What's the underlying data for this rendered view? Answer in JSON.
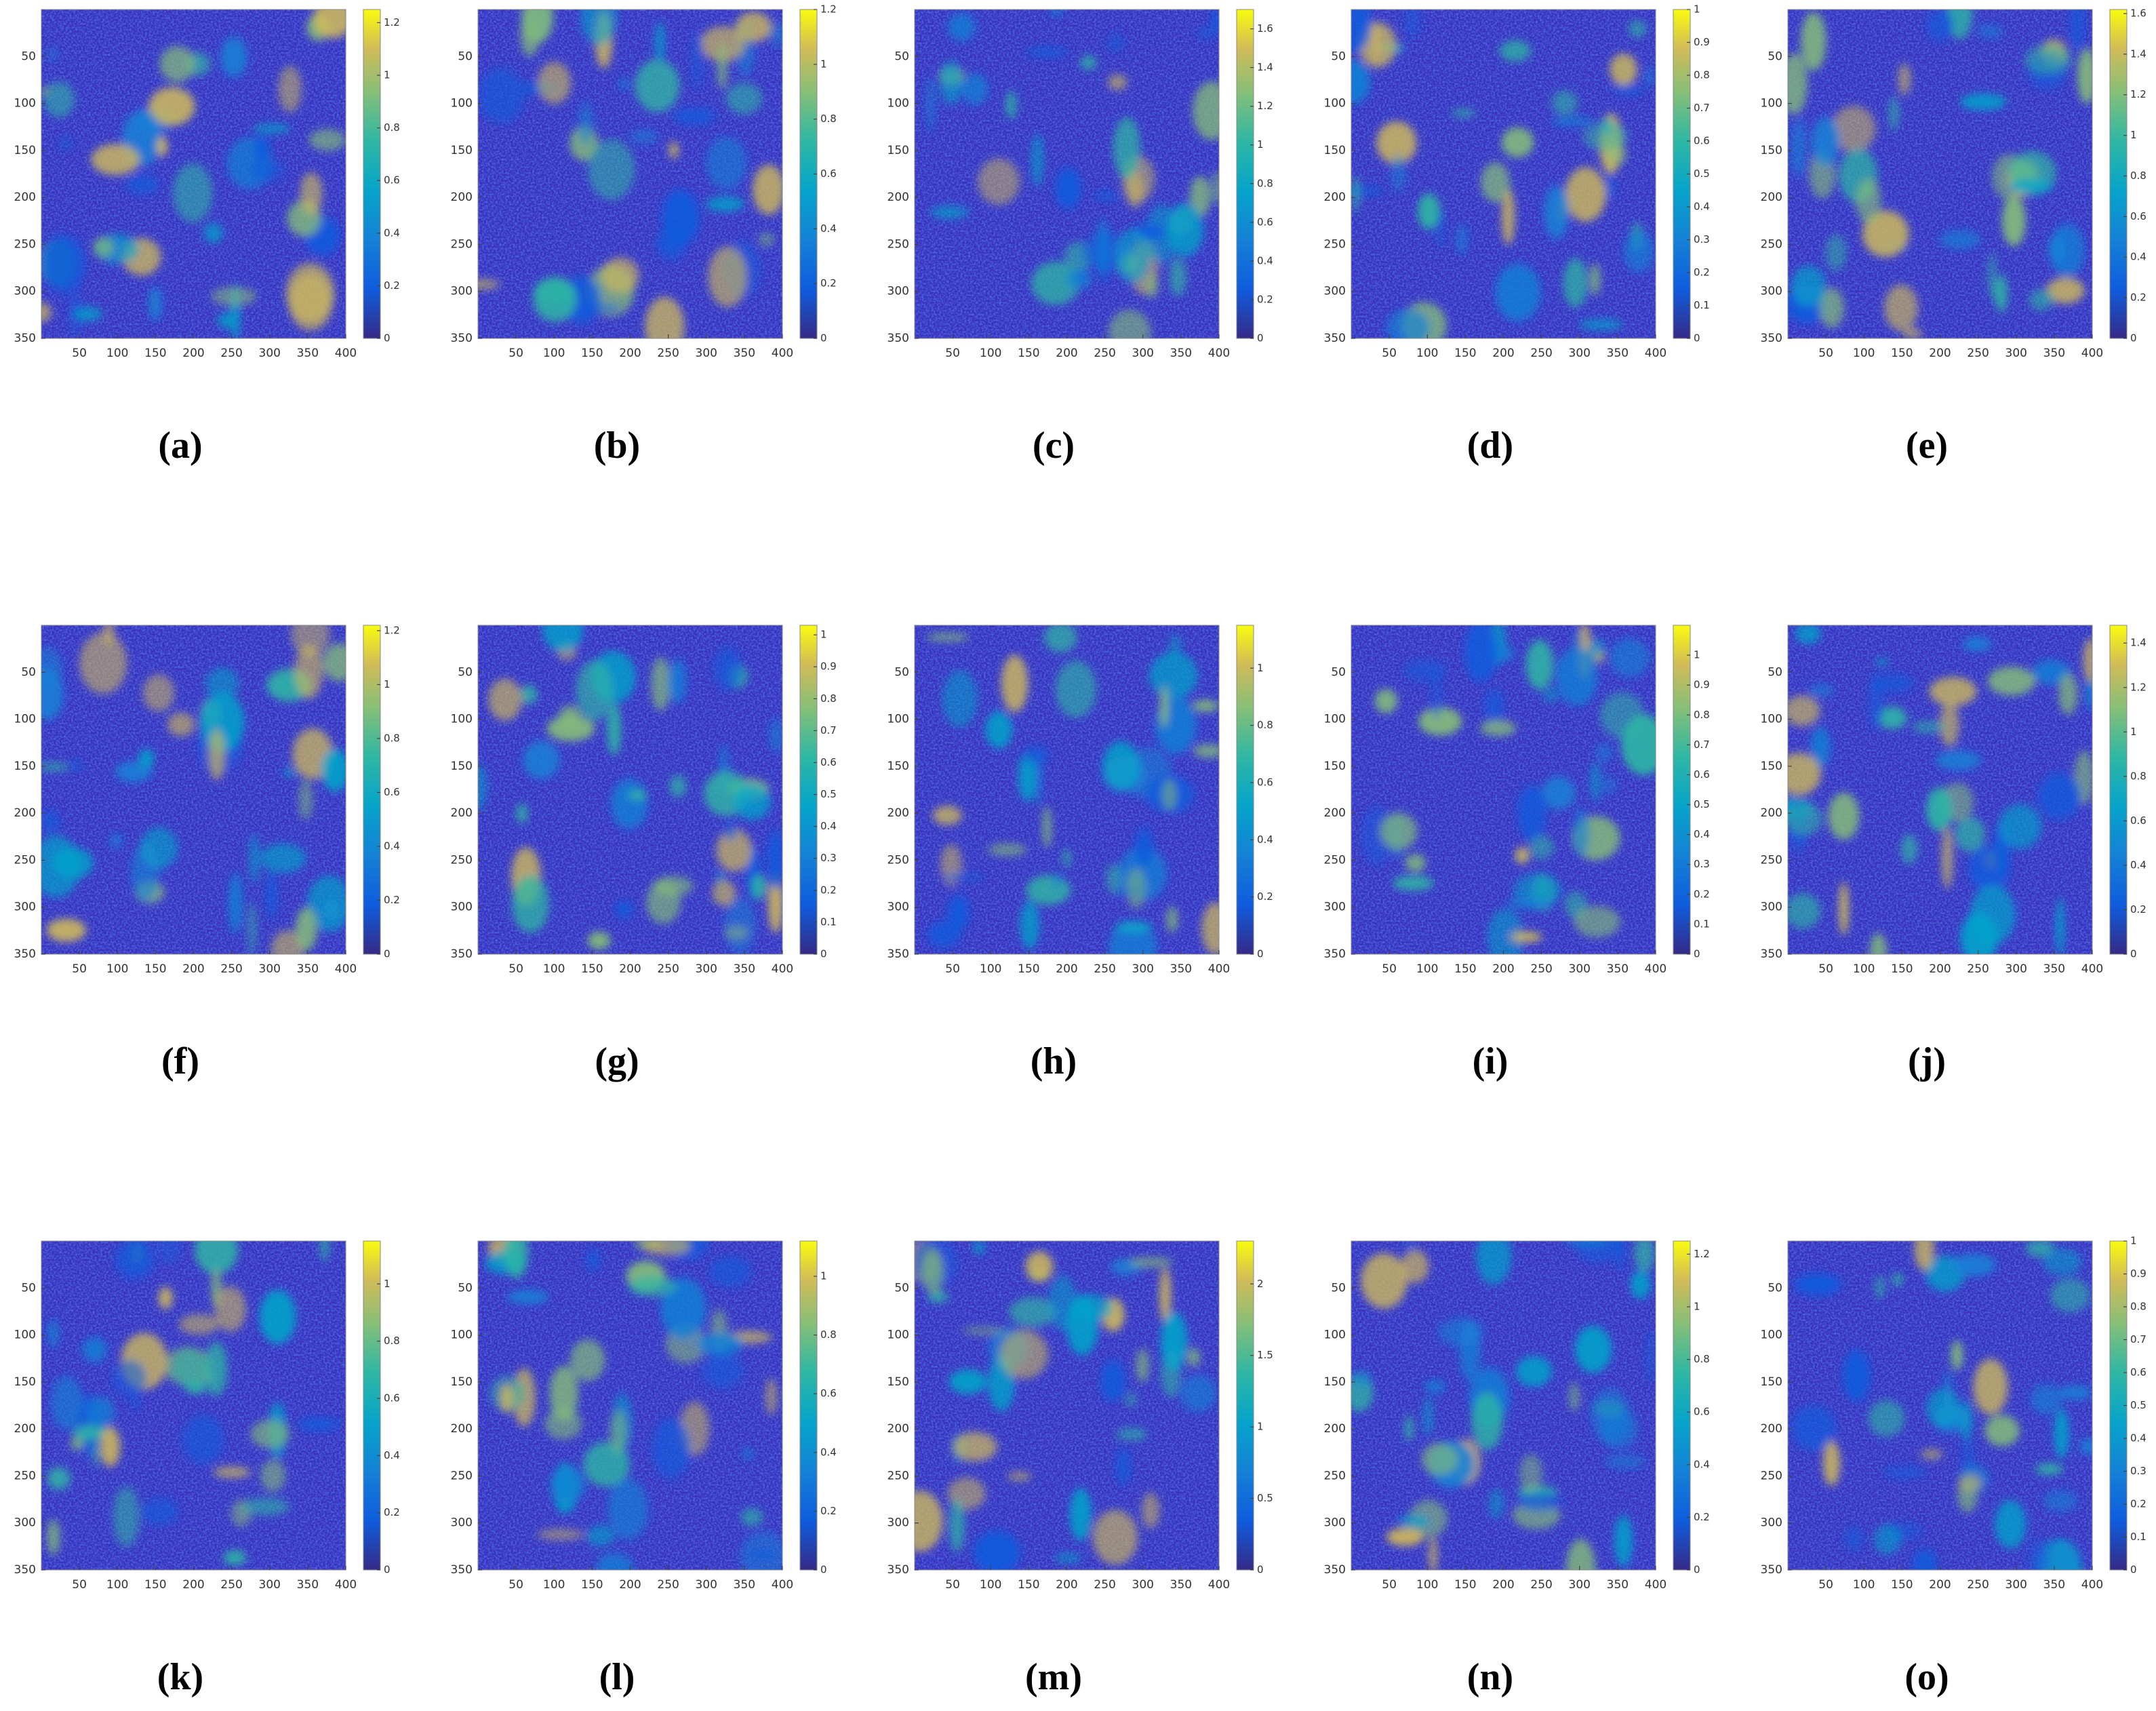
{
  "chart_data": [
    {
      "type": "heatmap",
      "label": "(a)",
      "colormap": "parula",
      "xlim": [
        0,
        400
      ],
      "ylim": [
        0,
        350
      ],
      "y_inverted": true,
      "xticks": [
        50,
        100,
        150,
        200,
        250,
        300,
        350,
        400
      ],
      "yticks": [
        50,
        100,
        150,
        200,
        250,
        300,
        350
      ],
      "clim": [
        0,
        1.25
      ],
      "cticks": [
        0,
        0.2,
        0.4,
        0.6,
        0.8,
        1,
        1.2
      ]
    },
    {
      "type": "heatmap",
      "label": "(b)",
      "colormap": "parula",
      "xlim": [
        0,
        400
      ],
      "ylim": [
        0,
        350
      ],
      "y_inverted": true,
      "xticks": [
        50,
        100,
        150,
        200,
        250,
        300,
        350,
        400
      ],
      "yticks": [
        50,
        100,
        150,
        200,
        250,
        300,
        350
      ],
      "clim": [
        0,
        1.2
      ],
      "cticks": [
        0,
        0.2,
        0.4,
        0.6,
        0.8,
        1,
        1.2
      ]
    },
    {
      "type": "heatmap",
      "label": "(c)",
      "colormap": "parula",
      "xlim": [
        0,
        400
      ],
      "ylim": [
        0,
        350
      ],
      "y_inverted": true,
      "xticks": [
        50,
        100,
        150,
        200,
        250,
        300,
        350,
        400
      ],
      "yticks": [
        50,
        100,
        150,
        200,
        250,
        300,
        350
      ],
      "clim": [
        0,
        1.7
      ],
      "cticks": [
        0,
        0.2,
        0.4,
        0.6,
        0.8,
        1,
        1.2,
        1.4,
        1.6
      ]
    },
    {
      "type": "heatmap",
      "label": "(d)",
      "colormap": "parula",
      "xlim": [
        0,
        400
      ],
      "ylim": [
        0,
        350
      ],
      "y_inverted": true,
      "xticks": [
        50,
        100,
        150,
        200,
        250,
        300,
        350,
        400
      ],
      "yticks": [
        50,
        100,
        150,
        200,
        250,
        300,
        350
      ],
      "clim": [
        0,
        1
      ],
      "cticks": [
        0,
        0.1,
        0.2,
        0.3,
        0.4,
        0.5,
        0.6,
        0.7,
        0.8,
        0.9,
        1
      ]
    },
    {
      "type": "heatmap",
      "label": "(e)",
      "colormap": "parula",
      "xlim": [
        0,
        400
      ],
      "ylim": [
        0,
        350
      ],
      "y_inverted": true,
      "xticks": [
        50,
        100,
        150,
        200,
        250,
        300,
        350,
        400
      ],
      "yticks": [
        50,
        100,
        150,
        200,
        250,
        300,
        350
      ],
      "clim": [
        0,
        1.62
      ],
      "cticks": [
        0,
        0.2,
        0.4,
        0.6,
        0.8,
        1,
        1.2,
        1.4,
        1.6
      ]
    },
    {
      "type": "heatmap",
      "label": "(f)",
      "colormap": "parula",
      "xlim": [
        0,
        400
      ],
      "ylim": [
        0,
        350
      ],
      "y_inverted": true,
      "xticks": [
        50,
        100,
        150,
        200,
        250,
        300,
        350,
        400
      ],
      "yticks": [
        50,
        100,
        150,
        200,
        250,
        300,
        350
      ],
      "clim": [
        0,
        1.22
      ],
      "cticks": [
        0,
        0.2,
        0.4,
        0.6,
        0.8,
        1,
        1.2
      ]
    },
    {
      "type": "heatmap",
      "label": "(g)",
      "colormap": "parula",
      "xlim": [
        0,
        400
      ],
      "ylim": [
        0,
        350
      ],
      "y_inverted": true,
      "xticks": [
        50,
        100,
        150,
        200,
        250,
        300,
        350,
        400
      ],
      "yticks": [
        50,
        100,
        150,
        200,
        250,
        300,
        350
      ],
      "clim": [
        0,
        1.03
      ],
      "cticks": [
        0,
        0.1,
        0.2,
        0.3,
        0.4,
        0.5,
        0.6,
        0.7,
        0.8,
        0.9,
        1
      ]
    },
    {
      "type": "heatmap",
      "label": "(h)",
      "colormap": "parula",
      "xlim": [
        0,
        400
      ],
      "ylim": [
        0,
        350
      ],
      "y_inverted": true,
      "xticks": [
        50,
        100,
        150,
        200,
        250,
        300,
        350,
        400
      ],
      "yticks": [
        50,
        100,
        150,
        200,
        250,
        300,
        350
      ],
      "clim": [
        0,
        1.15
      ],
      "cticks": [
        0,
        0.2,
        0.4,
        0.6,
        0.8,
        1
      ]
    },
    {
      "type": "heatmap",
      "label": "(i)",
      "colormap": "parula",
      "xlim": [
        0,
        400
      ],
      "ylim": [
        0,
        350
      ],
      "y_inverted": true,
      "xticks": [
        50,
        100,
        150,
        200,
        250,
        300,
        350,
        400
      ],
      "yticks": [
        50,
        100,
        150,
        200,
        250,
        300,
        350
      ],
      "clim": [
        0,
        1.1
      ],
      "cticks": [
        0,
        0.1,
        0.2,
        0.3,
        0.4,
        0.5,
        0.6,
        0.7,
        0.8,
        0.9,
        1
      ]
    },
    {
      "type": "heatmap",
      "label": "(j)",
      "colormap": "parula",
      "xlim": [
        0,
        400
      ],
      "ylim": [
        0,
        350
      ],
      "y_inverted": true,
      "xticks": [
        50,
        100,
        150,
        200,
        250,
        300,
        350,
        400
      ],
      "yticks": [
        50,
        100,
        150,
        200,
        250,
        300,
        350
      ],
      "clim": [
        0,
        1.48
      ],
      "cticks": [
        0,
        0.2,
        0.4,
        0.6,
        0.8,
        1,
        1.2,
        1.4
      ]
    },
    {
      "type": "heatmap",
      "label": "(k)",
      "colormap": "parula",
      "xlim": [
        0,
        400
      ],
      "ylim": [
        0,
        350
      ],
      "y_inverted": true,
      "xticks": [
        50,
        100,
        150,
        200,
        250,
        300,
        350,
        400
      ],
      "yticks": [
        50,
        100,
        150,
        200,
        250,
        300,
        350
      ],
      "clim": [
        0,
        1.15
      ],
      "cticks": [
        0,
        0.2,
        0.4,
        0.6,
        0.8,
        1
      ]
    },
    {
      "type": "heatmap",
      "label": "(l)",
      "colormap": "parula",
      "xlim": [
        0,
        400
      ],
      "ylim": [
        0,
        350
      ],
      "y_inverted": true,
      "xticks": [
        50,
        100,
        150,
        200,
        250,
        300,
        350,
        400
      ],
      "yticks": [
        50,
        100,
        150,
        200,
        250,
        300,
        350
      ],
      "clim": [
        0,
        1.12
      ],
      "cticks": [
        0,
        0.2,
        0.4,
        0.6,
        0.8,
        1
      ]
    },
    {
      "type": "heatmap",
      "label": "(m)",
      "colormap": "parula",
      "xlim": [
        0,
        400
      ],
      "ylim": [
        0,
        350
      ],
      "y_inverted": true,
      "xticks": [
        50,
        100,
        150,
        200,
        250,
        300,
        350,
        400
      ],
      "yticks": [
        50,
        100,
        150,
        200,
        250,
        300,
        350
      ],
      "clim": [
        0,
        2.3
      ],
      "cticks": [
        0,
        0.5,
        1,
        1.5,
        2
      ]
    },
    {
      "type": "heatmap",
      "label": "(n)",
      "colormap": "parula",
      "xlim": [
        0,
        400
      ],
      "ylim": [
        0,
        350
      ],
      "y_inverted": true,
      "xticks": [
        50,
        100,
        150,
        200,
        250,
        300,
        350,
        400
      ],
      "yticks": [
        50,
        100,
        150,
        200,
        250,
        300,
        350
      ],
      "clim": [
        0,
        1.25
      ],
      "cticks": [
        0,
        0.2,
        0.4,
        0.6,
        0.8,
        1,
        1.2
      ]
    },
    {
      "type": "heatmap",
      "label": "(o)",
      "colormap": "parula",
      "xlim": [
        0,
        400
      ],
      "ylim": [
        0,
        350
      ],
      "y_inverted": true,
      "xticks": [
        50,
        100,
        150,
        200,
        250,
        300,
        350,
        400
      ],
      "yticks": [
        50,
        100,
        150,
        200,
        250,
        300,
        350
      ],
      "clim": [
        0,
        1
      ],
      "cticks": [
        0,
        0.1,
        0.2,
        0.3,
        0.4,
        0.5,
        0.6,
        0.7,
        0.8,
        0.9,
        1
      ]
    }
  ]
}
